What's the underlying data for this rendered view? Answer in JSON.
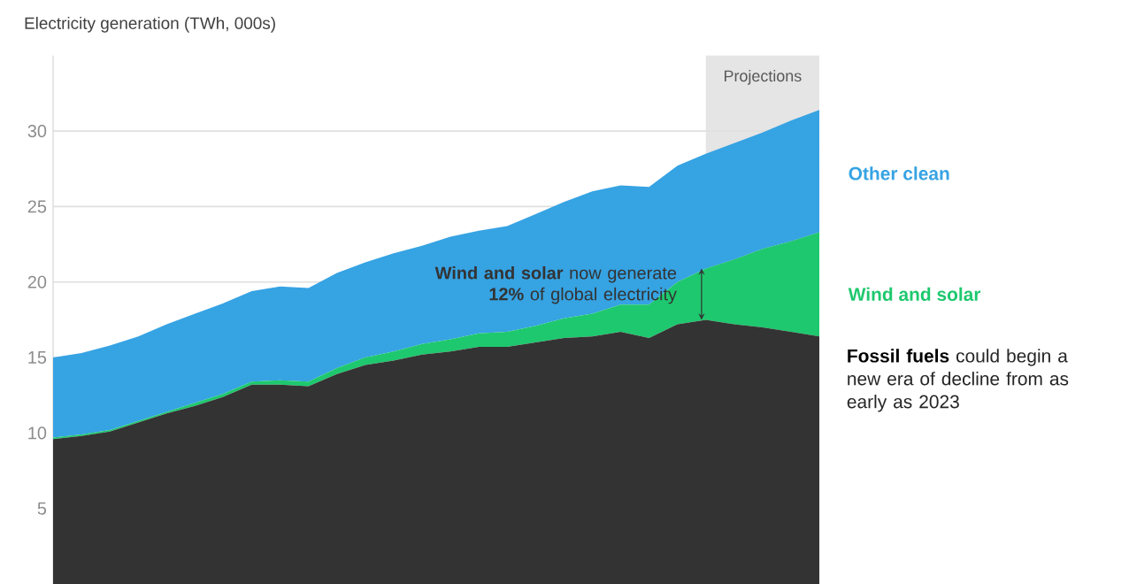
{
  "chart_data": {
    "type": "area",
    "stacked": true,
    "title": "Electricity generation (TWh, 000s)",
    "categories": [
      null,
      null,
      null,
      null,
      null,
      null,
      null,
      null,
      null,
      null,
      null,
      null,
      null,
      null,
      null,
      null,
      null,
      null,
      null,
      null,
      null,
      null,
      null,
      null,
      null,
      null,
      null,
      null
    ],
    "series": [
      {
        "name": "Fossil fuels",
        "color": "#333333",
        "values": [
          9.6,
          9.8,
          10.1,
          10.7,
          11.3,
          11.8,
          12.4,
          13.2,
          13.2,
          13.1,
          13.9,
          14.5,
          14.8,
          15.2,
          15.4,
          15.7,
          15.7,
          16.0,
          16.3,
          16.4,
          16.7,
          16.3,
          17.2,
          17.5,
          17.2,
          17.0,
          16.7,
          16.4
        ]
      },
      {
        "name": "Wind and solar",
        "color": "#1ec86e",
        "values": [
          0.1,
          0.1,
          0.1,
          0.1,
          0.1,
          0.2,
          0.2,
          0.2,
          0.3,
          0.3,
          0.4,
          0.5,
          0.6,
          0.7,
          0.8,
          0.9,
          1.0,
          1.1,
          1.3,
          1.5,
          1.8,
          2.2,
          2.8,
          3.4,
          4.3,
          5.2,
          6.0,
          6.9
        ]
      },
      {
        "name": "Other clean",
        "color": "#36a3e3",
        "values": [
          5.3,
          5.4,
          5.6,
          5.6,
          5.8,
          5.9,
          6.0,
          6.0,
          6.2,
          6.2,
          6.3,
          6.3,
          6.5,
          6.5,
          6.8,
          6.8,
          7.0,
          7.4,
          7.7,
          8.1,
          7.9,
          7.8,
          7.7,
          7.6,
          7.7,
          7.7,
          8.0,
          8.1
        ]
      }
    ],
    "ylim": [
      0,
      35
    ],
    "yticks": [
      5,
      10,
      15,
      20,
      25,
      30
    ],
    "grid": "y",
    "tick_labels": "y",
    "legend": "right",
    "annotations": [
      "**Wind and solar** now generate **12%** of global electricity",
      "could begin a new era of decline from as early as 2023",
      "Projections"
    ]
  }
}
